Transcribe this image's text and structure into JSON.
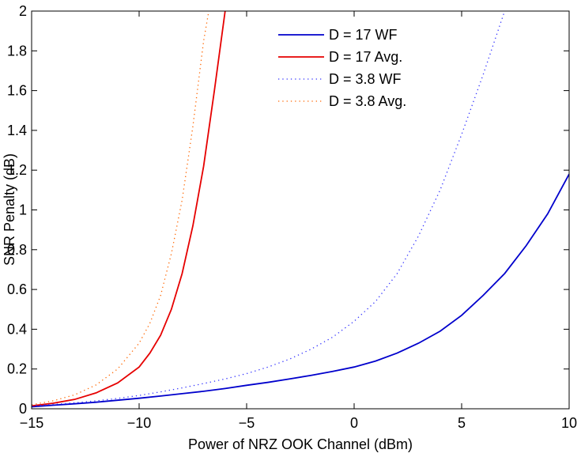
{
  "chart_data": {
    "type": "line",
    "title": "",
    "xlabel": "Power of NRZ OOK Channel (dBm)",
    "ylabel": "SNR Penalty (dB)",
    "xlim": [
      -15,
      10
    ],
    "ylim": [
      0,
      2
    ],
    "xticks": [
      -15,
      -10,
      -5,
      0,
      5,
      10
    ],
    "xtick_labels": [
      "−15",
      "−10",
      "−5",
      "0",
      "5",
      "10"
    ],
    "yticks": [
      0,
      0.2,
      0.4,
      0.6,
      0.8,
      1,
      1.2,
      1.4,
      1.6,
      1.8,
      2
    ],
    "ytick_labels": [
      "0",
      "0.2",
      "0.4",
      "0.6",
      "0.8",
      "1",
      "1.2",
      "1.4",
      "1.6",
      "1.8",
      "2"
    ],
    "grid": false,
    "legend_position": "top-right",
    "series": [
      {
        "name": "D = 17 WF",
        "color": "#0000cc",
        "style": "solid",
        "x": [
          -15,
          -14,
          -13,
          -12,
          -11,
          -10,
          -9,
          -8,
          -7,
          -6,
          -5,
          -4,
          -3,
          -2,
          -1,
          0,
          1,
          2,
          3,
          4,
          5,
          6,
          7,
          8,
          9,
          10
        ],
        "y": [
          0.01,
          0.018,
          0.025,
          0.033,
          0.043,
          0.053,
          0.064,
          0.076,
          0.088,
          0.102,
          0.118,
          0.133,
          0.15,
          0.168,
          0.188,
          0.21,
          0.24,
          0.28,
          0.33,
          0.39,
          0.47,
          0.57,
          0.68,
          0.82,
          0.98,
          1.18
        ]
      },
      {
        "name": "D = 17 Avg.",
        "color": "#e60000",
        "style": "solid",
        "x": [
          -15,
          -14,
          -13,
          -12,
          -11,
          -10,
          -9.5,
          -9,
          -8.5,
          -8,
          -7.5,
          -7,
          -6.5,
          -6,
          -5.8
        ],
        "y": [
          0.015,
          0.028,
          0.047,
          0.08,
          0.13,
          0.21,
          0.28,
          0.37,
          0.5,
          0.68,
          0.92,
          1.22,
          1.6,
          2.0,
          2.2
        ]
      },
      {
        "name": "D = 3.8 WF",
        "color": "#3333ff",
        "style": "dotted",
        "x": [
          -15,
          -14,
          -13,
          -12,
          -11,
          -10,
          -9,
          -8,
          -7,
          -6,
          -5,
          -4,
          -3,
          -2,
          -1,
          0,
          1,
          2,
          3,
          4,
          5,
          6,
          7
        ],
        "y": [
          0.015,
          0.022,
          0.03,
          0.04,
          0.052,
          0.067,
          0.085,
          0.105,
          0.127,
          0.15,
          0.177,
          0.21,
          0.25,
          0.3,
          0.36,
          0.44,
          0.54,
          0.68,
          0.87,
          1.1,
          1.38,
          1.68,
          2.0
        ]
      },
      {
        "name": "D = 3.8 Avg.",
        "color": "#ff6600",
        "style": "dotted",
        "x": [
          -15,
          -14,
          -13,
          -12,
          -11,
          -10,
          -9.5,
          -9,
          -8.5,
          -8,
          -7.5,
          -7,
          -6.6
        ],
        "y": [
          0.02,
          0.04,
          0.07,
          0.12,
          0.2,
          0.33,
          0.43,
          0.57,
          0.78,
          1.05,
          1.42,
          1.85,
          2.1
        ]
      }
    ]
  }
}
